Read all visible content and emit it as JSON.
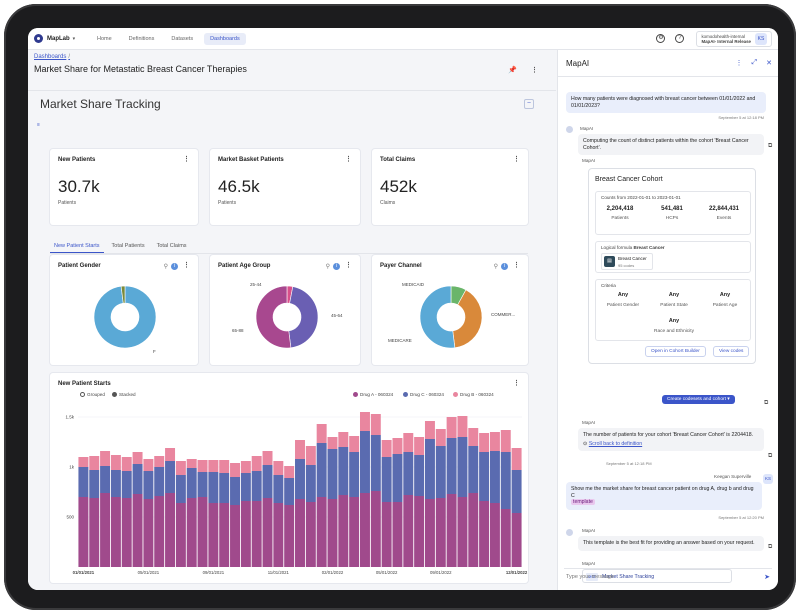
{
  "nav": {
    "app_name": "MapLab",
    "tabs": [
      "Home",
      "Definitions",
      "Datasets",
      "Dashboards"
    ],
    "active_tab": "Dashboards",
    "org_line1": "komodohealth-internal",
    "org_line2": "MapAI- Internal Release",
    "user_initials": "KS"
  },
  "dashboard": {
    "breadcrumb": "Dashboards",
    "title": "Market Share for Metastatic Breast Cancer Therapies",
    "section_title": "Market Share Tracking",
    "kpis": [
      {
        "title": "New Patients",
        "value": "30.7k",
        "sub": "Patients"
      },
      {
        "title": "Market Basket Patients",
        "value": "46.5k",
        "sub": "Patients"
      },
      {
        "title": "Total Claims",
        "value": "452k",
        "sub": "Claims"
      }
    ],
    "tabs": [
      "New Patient Starts",
      "Total Patients",
      "Total Claims"
    ],
    "active_tab": "New Patient Starts",
    "donuts": [
      {
        "title": "Patient Gender",
        "labels": [
          "F"
        ],
        "slices": [
          {
            "value": 98,
            "color": "#5aa9d6"
          },
          {
            "value": 2,
            "color": "#7a8a3a"
          }
        ]
      },
      {
        "title": "Patient Age Group",
        "labels": [
          "25-44",
          "45-64",
          "65-88"
        ],
        "slices": [
          {
            "value": 3,
            "color": "#d94f8a"
          },
          {
            "value": 45,
            "color": "#6a5fb3"
          },
          {
            "value": 52,
            "color": "#a8488f"
          }
        ]
      },
      {
        "title": "Payer Channel",
        "labels": [
          "MEDICAID",
          "COMMER...",
          "MEDICARE"
        ],
        "slices": [
          {
            "value": 8,
            "color": "#6ab56a"
          },
          {
            "value": 40,
            "color": "#d9893a"
          },
          {
            "value": 52,
            "color": "#5aa9d6"
          }
        ]
      }
    ],
    "bar_card": {
      "title": "New Patient Starts",
      "toggle_grouped": "Grouped",
      "toggle_stacked": "Stacked"
    }
  },
  "chart_data": {
    "type": "bar",
    "stacked": true,
    "title": "New Patient Starts",
    "y_ticks": [
      "1.5k",
      "1k",
      "500"
    ],
    "ylim": [
      0,
      1600
    ],
    "x_tick_labels": [
      "01/01/2021",
      "05/01/2021",
      "09/01/2021",
      "11/01/2021",
      "02/01/2022",
      "05/01/2022",
      "09/01/2022",
      "12/01/2022"
    ],
    "series": [
      {
        "name": "Drug A - 060324",
        "color": "#a04a8c",
        "values": [
          700,
          690,
          740,
          700,
          690,
          730,
          680,
          710,
          740,
          640,
          690,
          700,
          640,
          640,
          620,
          660,
          660,
          690,
          640,
          620,
          680,
          650,
          700,
          680,
          720,
          700,
          740,
          760,
          650,
          650,
          720,
          710,
          680,
          690,
          730,
          700,
          740,
          660,
          640,
          580,
          540
        ]
      },
      {
        "name": "Drug C - 060324",
        "color": "#5a6bb0",
        "values": [
          300,
          280,
          270,
          270,
          270,
          300,
          280,
          290,
          320,
          280,
          300,
          250,
          310,
          300,
          280,
          280,
          300,
          330,
          280,
          270,
          400,
          370,
          540,
          500,
          480,
          450,
          620,
          560,
          450,
          480,
          430,
          410,
          600,
          520,
          560,
          600,
          470,
          490,
          520,
          570,
          430
        ]
      },
      {
        "name": "Drug B - 060324",
        "color": "#e9869f",
        "values": [
          100,
          140,
          150,
          150,
          140,
          120,
          120,
          110,
          130,
          140,
          90,
          120,
          120,
          130,
          140,
          120,
          150,
          140,
          140,
          120,
          190,
          190,
          190,
          120,
          150,
          160,
          190,
          210,
          170,
          160,
          190,
          180,
          180,
          170,
          210,
          210,
          180,
          190,
          190,
          220,
          220
        ]
      }
    ]
  },
  "chat": {
    "title": "MapAI",
    "q1": "How many patients were diagnosed with breast cancer between 01/01/2022 and 01/01/2023?",
    "q1_ts": "September 5 at 12:18 PM",
    "bot_name": "MapAI",
    "a1": "Computing the count of distinct patients within the cohort 'Breast Cancer Cohort'.",
    "cohort": {
      "title": "Breast Cancer Cohort",
      "counts_label": "Counts from 2022-01-01 to 2023-01-01",
      "stats": [
        {
          "value": "2,204,418",
          "label": "Patients"
        },
        {
          "value": "541,481",
          "label": "HCPs"
        },
        {
          "value": "22,844,431",
          "label": "Events"
        }
      ],
      "formula_label": "Logical formula",
      "formula_name": "Breast Cancer",
      "chip_title": "Breast Cancer",
      "chip_sub": "95 codes",
      "criteria_label": "Criteria",
      "criteria": [
        {
          "value": "Any",
          "label": "Patient Gender"
        },
        {
          "value": "Any",
          "label": "Patient State"
        },
        {
          "value": "Any",
          "label": "Patient Age"
        },
        {
          "value": "Any",
          "label": "Race and Ethnicity"
        }
      ],
      "btn_open": "Open in Cohort Builder",
      "btn_codes": "View codes",
      "btn_create": "Create codesets and cohort"
    },
    "a2": "The number of patients for your cohort 'Breast Cancer Cohort' is 2204418.",
    "a2_link": "Scroll back to definition",
    "a2_ts": "September 5 at 12:18 PM",
    "user_name": "Keegan Superville",
    "user_initials": "KS",
    "q2": "Show me the market share for breast cancer patient on drug A, drug b and drug C",
    "q2_chip": "template",
    "q2_ts": "September 5 at 12:20 PM",
    "a3": "This template is the best fit for providing an answer based on your request.",
    "template_badge": "MST",
    "template_title": "Market Share Tracking",
    "input_placeholder": "Type your message"
  }
}
